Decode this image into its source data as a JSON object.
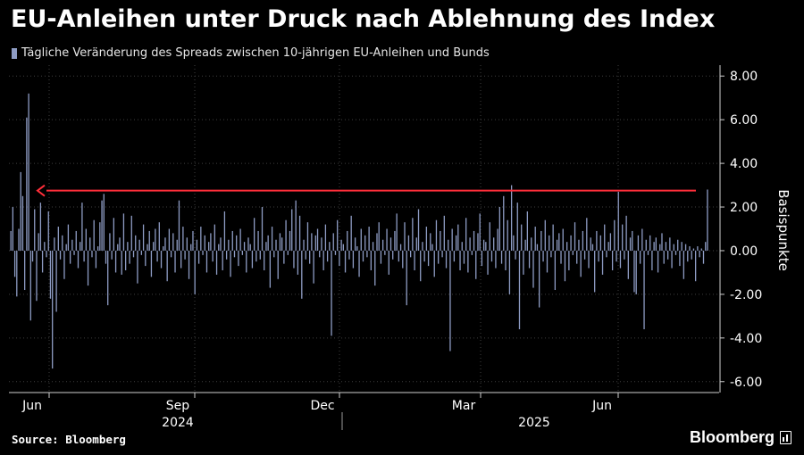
{
  "title": "EU-Anleihen unter Druck nach Ablehnung des Index",
  "source": "Source: Bloomberg",
  "brand": "Bloomberg",
  "chart_data": {
    "type": "bar",
    "legend": "Tägliche Veränderung des Spreads zwischen 10-jährigen EU-Anleihen und Bunds",
    "legend_position": "top-left",
    "ylabel": "Basispunkte",
    "ylim": [
      -6.5,
      8.5
    ],
    "yticks": [
      "8.00",
      "6.00",
      "4.00",
      "2.00",
      "0.00",
      "-2.00",
      "-4.00",
      "-6.00"
    ],
    "grid": true,
    "bar_color": "#8e9cc4",
    "reference_line": {
      "value": 2.75,
      "color": "#ff2e3a",
      "direction": "arrow-left"
    },
    "month_labels": [
      "Jun",
      "Sep",
      "Dec",
      "Mar",
      "Jun"
    ],
    "year_labels": [
      "2024",
      "2025"
    ],
    "values": [
      0.9,
      2.0,
      -1.2,
      -2.1,
      1.0,
      3.6,
      2.5,
      -1.8,
      6.1,
      7.2,
      -3.2,
      -0.5,
      1.9,
      -2.3,
      0.8,
      2.2,
      -1.0,
      0.4,
      -0.3,
      1.8,
      -2.2,
      -5.4,
      0.6,
      -2.8,
      1.1,
      -0.4,
      0.7,
      -1.3,
      0.3,
      1.2,
      -0.6,
      0.5,
      -0.2,
      0.9,
      -0.8,
      0.4,
      2.2,
      -0.5,
      1.0,
      -1.6,
      0.6,
      -0.3,
      1.4,
      -0.8,
      0.2,
      1.3,
      2.3,
      2.6,
      -0.6,
      -2.5,
      0.8,
      -0.4,
      1.5,
      -1.0,
      0.3,
      0.6,
      -1.1,
      1.7,
      -0.9,
      0.4,
      -0.6,
      1.6,
      -0.3,
      0.7,
      -1.5,
      0.5,
      -0.2,
      1.2,
      -0.7,
      0.3,
      0.9,
      -1.2,
      0.4,
      1.0,
      -0.5,
      1.3,
      -0.8,
      0.2,
      0.6,
      -1.4,
      1.0,
      -0.3,
      0.8,
      -1.0,
      0.5,
      2.3,
      -0.8,
      1.1,
      -0.4,
      0.6,
      -1.3,
      0.3,
      0.9,
      -2.0,
      0.5,
      -0.6,
      1.1,
      -0.2,
      0.7,
      -1.0,
      0.4,
      0.8,
      -0.5,
      1.2,
      -1.1,
      0.3,
      0.6,
      -0.9,
      1.8,
      -0.4,
      0.5,
      -1.2,
      0.9,
      -0.3,
      0.7,
      -0.7,
      1.0,
      -0.2,
      0.4,
      -1.0,
      0.6,
      0.3,
      -0.8,
      1.5,
      -0.5,
      0.9,
      -0.4,
      2.0,
      -0.9,
      0.4,
      0.7,
      -1.7,
      1.1,
      -0.3,
      0.5,
      -1.3,
      0.8,
      0.6,
      -0.6,
      1.4,
      -0.2,
      0.9,
      1.9,
      -0.8,
      2.3,
      -1.1,
      1.6,
      -2.2,
      0.5,
      -0.4,
      1.3,
      -0.6,
      0.8,
      -1.5,
      0.7,
      1.0,
      -0.3,
      0.6,
      -0.9,
      1.2,
      -0.5,
      0.4,
      -3.9,
      0.8,
      -0.2,
      1.4,
      -0.7,
      0.5,
      0.3,
      -1.0,
      0.9,
      -0.4,
      1.6,
      -0.8,
      0.6,
      0.2,
      -1.2,
      1.0,
      -0.5,
      0.7,
      -0.3,
      1.1,
      -0.9,
      0.4,
      -1.6,
      0.8,
      1.3,
      -0.6,
      0.5,
      -0.2,
      1.0,
      -1.1,
      0.6,
      -0.4,
      0.9,
      1.7,
      -0.5,
      0.3,
      -0.8,
      1.3,
      -2.5,
      0.7,
      -0.3,
      1.5,
      -0.9,
      0.6,
      1.9,
      -1.4,
      0.4,
      -0.5,
      1.1,
      -0.7,
      0.8,
      0.3,
      -1.2,
      1.4,
      -0.6,
      0.9,
      -0.3,
      1.6,
      -0.8,
      0.5,
      -4.6,
      1.0,
      -0.5,
      0.7,
      1.2,
      -0.9,
      0.4,
      -0.6,
      1.5,
      -1.0,
      0.6,
      -0.2,
      0.9,
      -1.3,
      0.8,
      1.7,
      -0.7,
      0.5,
      0.4,
      -1.1,
      1.3,
      -0.5,
      0.6,
      -0.8,
      1.0,
      2.0,
      -0.6,
      2.5,
      -0.9,
      1.4,
      -2.0,
      3.0,
      0.7,
      -0.4,
      2.2,
      -3.6,
      1.2,
      -1.1,
      0.5,
      1.8,
      -0.8,
      0.6,
      -1.7,
      1.1,
      0.3,
      -2.6,
      0.9,
      -0.5,
      1.4,
      -1.0,
      0.7,
      -0.3,
      1.2,
      -1.8,
      0.5,
      0.8,
      -0.6,
      1.0,
      -1.4,
      0.4,
      -0.9,
      0.7,
      -0.2,
      1.3,
      -0.6,
      0.5,
      -1.2,
      0.9,
      -0.4,
      1.5,
      -0.8,
      0.6,
      0.3,
      -1.9,
      0.9,
      -0.5,
      0.7,
      -1.1,
      1.2,
      -0.3,
      0.4,
      0.8,
      -0.9,
      1.4,
      -0.5,
      2.7,
      -0.8,
      1.2,
      -0.4,
      1.6,
      -1.3,
      0.6,
      0.9,
      -1.9,
      -2.0,
      0.7,
      -0.6,
      1.0,
      -3.6,
      0.5,
      -0.2,
      0.7,
      -0.9,
      0.4,
      0.6,
      -1.0,
      0.3,
      0.8,
      -0.6,
      0.4,
      -0.4,
      0.6,
      -0.8,
      0.3,
      -0.2,
      0.5,
      -0.7,
      0.4,
      -1.3,
      0.3,
      -0.5,
      0.2,
      -0.4,
      0.1,
      -1.4,
      0.2,
      -0.3,
      0.1,
      -0.6,
      0.4,
      2.8
    ]
  }
}
